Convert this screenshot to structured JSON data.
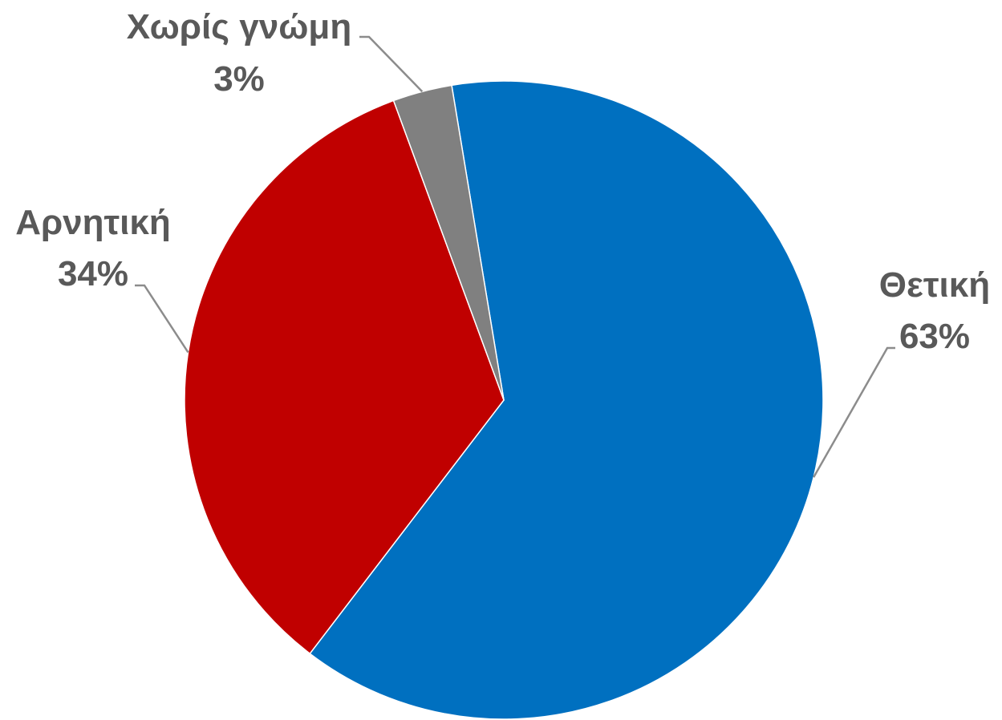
{
  "chart_data": {
    "type": "pie",
    "title": "",
    "categories": [
      "Θετική",
      "Αρνητική",
      "Χωρίς γνώμη"
    ],
    "values": [
      63,
      34,
      3
    ],
    "value_labels": [
      "63%",
      "34%",
      "3%"
    ],
    "colors": [
      "#0070C0",
      "#C00000",
      "#808080"
    ],
    "start_angle_deg": -9.4,
    "direction": "clockwise",
    "legend": "none",
    "data_labels": "outside-with-leader-lines"
  }
}
